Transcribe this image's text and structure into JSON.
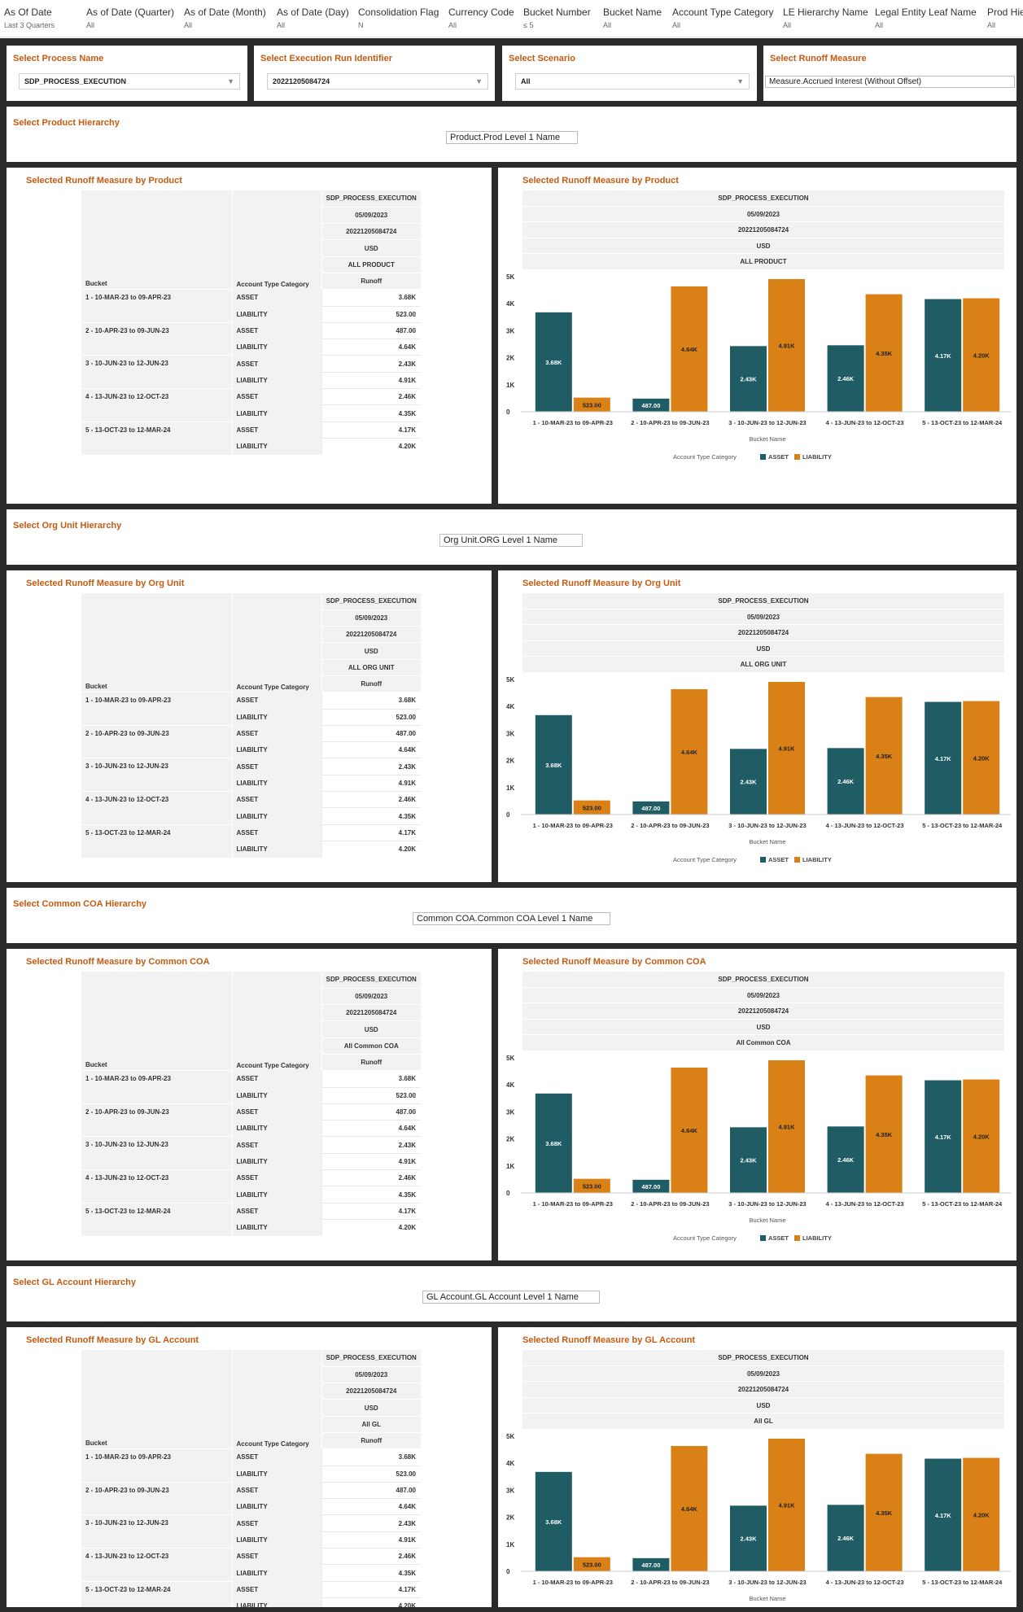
{
  "filters": [
    {
      "label": "As Of Date",
      "value": "Last 3 Quarters"
    },
    {
      "label": "As of Date (Quarter)",
      "value": "All"
    },
    {
      "label": "As of Date (Month)",
      "value": "All"
    },
    {
      "label": "As of Date (Day)",
      "value": "All"
    },
    {
      "label": "Consolidation Flag",
      "value": "N"
    },
    {
      "label": "Currency Code",
      "value": "All"
    },
    {
      "label": "Bucket Number",
      "value": "≤ 5"
    },
    {
      "label": "Bucket Name",
      "value": "All"
    },
    {
      "label": "Account Type Category",
      "value": "All"
    },
    {
      "label": "LE Hierarchy Name",
      "value": "All"
    },
    {
      "label": "Legal Entity Leaf Name",
      "value": "All"
    },
    {
      "label": "Prod Hie",
      "value": "All"
    }
  ],
  "selectors": {
    "process": {
      "title": "Select Process Name",
      "value": "SDP_PROCESS_EXECUTION"
    },
    "run": {
      "title": "Select Execution Run Identifier",
      "value": "20221205084724"
    },
    "scenario": {
      "title": "Select Scenario",
      "value": "All"
    },
    "measure": {
      "title": "Select Runoff Measure",
      "value": "Measure.Accrued Interest (Without Offset)"
    }
  },
  "colors": {
    "asset": "#1f5c63",
    "liability": "#d98016",
    "title": "#c55a11"
  },
  "common": {
    "process": "SDP_PROCESS_EXECUTION",
    "date": "05/09/2023",
    "run": "20221205084724",
    "currency": "USD",
    "bucket_header": "Bucket",
    "acct_header": "Account Type Category",
    "runoff_header": "Runoff",
    "asset": "ASSET",
    "liability": "LIABILITY",
    "xlabel": "Bucket Name",
    "legend_title": "Account Type Category"
  },
  "sections": [
    {
      "hier_title": "Select Product Hierarchy",
      "hier_value": "Product.Prod Level 1 Name",
      "table_title": "Selected Runoff Measure by Product",
      "chart_title": "Selected Runoff Measure by Product",
      "member": "ALL PRODUCT"
    },
    {
      "hier_title": "Select Org Unit Hierarchy",
      "hier_value": "Org Unit.ORG Level 1 Name",
      "table_title": "Selected Runoff Measure by Org Unit",
      "chart_title": "Selected Runoff Measure by Org Unit",
      "member": "ALL ORG UNIT"
    },
    {
      "hier_title": "Select Common COA Hierarchy",
      "hier_value": "Common COA.Common COA Level 1 Name",
      "table_title": "Selected Runoff Measure by Common COA",
      "chart_title": "Selected Runoff Measure by Common COA",
      "member": "All Common COA"
    },
    {
      "hier_title": "Select GL Account Hierarchy",
      "hier_value": "GL Account.GL Account Level 1 Name",
      "table_title": "Selected Runoff Measure by GL Account",
      "chart_title": "Selected Runoff Measure by GL Account",
      "member": "All GL"
    }
  ],
  "chart_data": {
    "type": "bar",
    "categories": [
      "1 - 10-MAR-23 to 09-APR-23",
      "2 - 10-APR-23 to 09-JUN-23",
      "3 - 10-JUN-23 to 12-JUN-23",
      "4 - 13-JUN-23 to 12-OCT-23",
      "5 - 13-OCT-23 to 12-MAR-24"
    ],
    "series": [
      {
        "name": "ASSET",
        "values": [
          3680,
          487,
          2430,
          2460,
          4170
        ],
        "labels": [
          "3.68K",
          "487.00",
          "2.43K",
          "2.46K",
          "4.17K"
        ]
      },
      {
        "name": "LIABILITY",
        "values": [
          523,
          4640,
          4910,
          4350,
          4200
        ],
        "labels": [
          "523.00",
          "4.64K",
          "4.91K",
          "4.35K",
          "4.20K"
        ]
      }
    ],
    "yticks": [
      "0",
      "1K",
      "2K",
      "3K",
      "4K",
      "5K"
    ],
    "ylim": [
      0,
      5000
    ],
    "xlabel": "Bucket Name",
    "legend": "bottom"
  }
}
